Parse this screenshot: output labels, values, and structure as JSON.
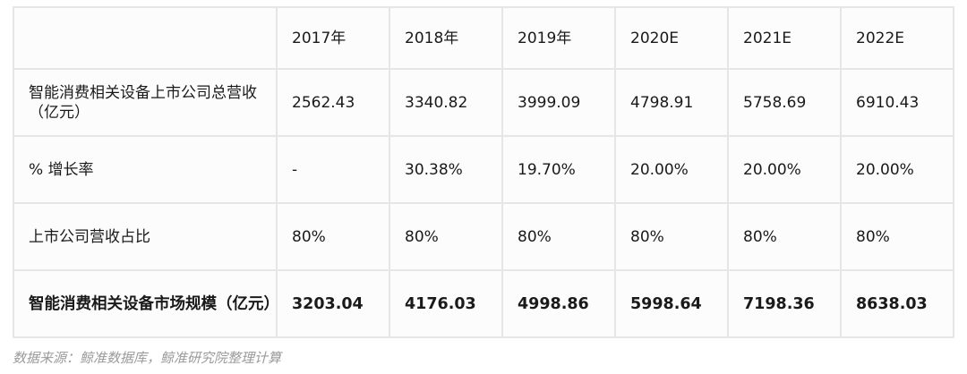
{
  "table": {
    "headers": [
      "",
      "2017年",
      "2018年",
      "2019年",
      "2020E",
      "2021E",
      "2022E"
    ],
    "rows": [
      {
        "label": "智能消费相关设备上市公司总营收（亿元）",
        "values": [
          "2562.43",
          "3340.82",
          "3999.09",
          "4798.91",
          "5758.69",
          "6910.43"
        ]
      },
      {
        "label": "% 增长率",
        "values": [
          "-",
          "30.38%",
          "19.70%",
          "20.00%",
          "20.00%",
          "20.00%"
        ]
      },
      {
        "label": "上市公司营收占比",
        "values": [
          "80%",
          "80%",
          "80%",
          "80%",
          "80%",
          "80%"
        ]
      },
      {
        "label": "智能消费相关设备市场规模（亿元）",
        "values": [
          "3203.04",
          "4176.03",
          "4998.86",
          "5998.64",
          "7198.36",
          "8638.03"
        ],
        "bold": true
      }
    ]
  },
  "source": "数据来源：鲸准数据库，鲸准研究院整理计算"
}
